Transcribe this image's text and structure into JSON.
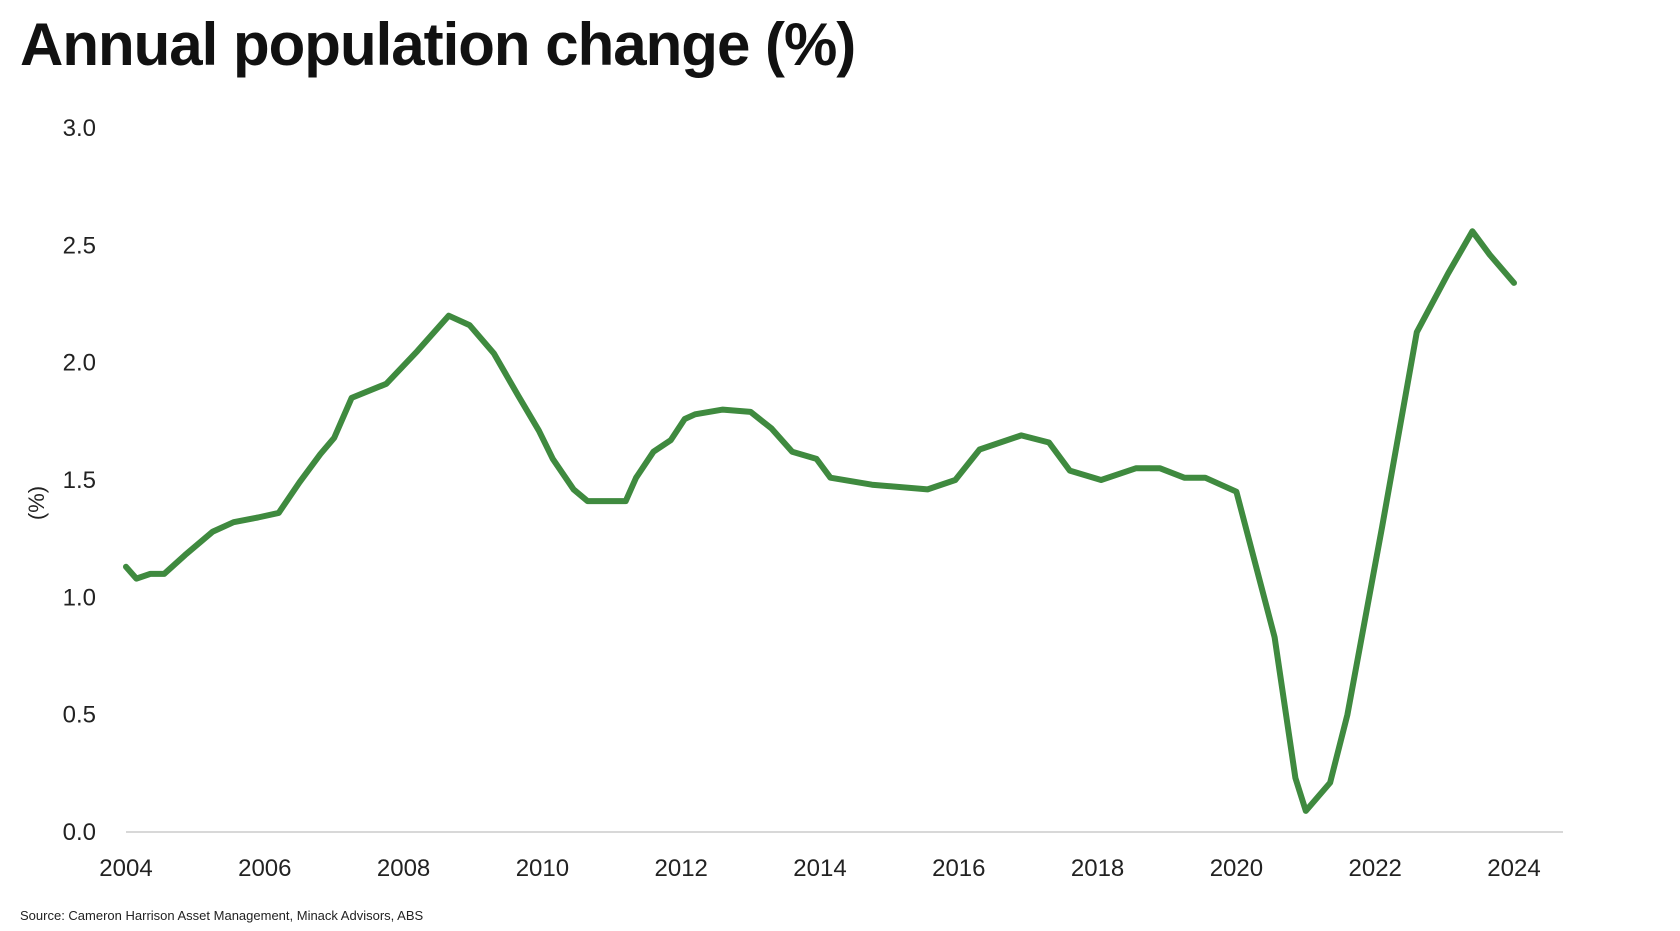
{
  "chart_data": {
    "type": "line",
    "title": "Annual population change (%)",
    "ylabel": "(%)",
    "xlabel": "",
    "xlim": [
      2004,
      2024.6
    ],
    "ylim": [
      0,
      3.0
    ],
    "x_ticks": [
      "2004",
      "2006",
      "2008",
      "2010",
      "2012",
      "2014",
      "2016",
      "2018",
      "2020",
      "2022",
      "2024"
    ],
    "y_ticks": [
      "0.0",
      "0.5",
      "1.0",
      "1.5",
      "2.0",
      "2.5",
      "3.0"
    ],
    "grid": false,
    "legend": "none",
    "line_color": "#3f8a3f",
    "series": [
      {
        "x": [
          2004.0,
          2004.15,
          2004.35,
          2004.55,
          2004.85,
          2005.25,
          2005.55,
          2005.9,
          2006.2,
          2006.5,
          2006.8,
          2007.0,
          2007.25,
          2007.75,
          2008.2,
          2008.65,
          2008.95,
          2009.3,
          2009.65,
          2009.95,
          2010.15,
          2010.45,
          2010.65,
          2011.0,
          2011.2,
          2011.35,
          2011.6,
          2011.85,
          2012.05,
          2012.2,
          2012.6,
          2013.0,
          2013.3,
          2013.6,
          2013.95,
          2014.15,
          2014.75,
          2015.55,
          2015.95,
          2016.3,
          2016.9,
          2017.3,
          2017.6,
          2018.05,
          2018.55,
          2018.9,
          2019.25,
          2019.55,
          2020.0,
          2020.55,
          2020.85,
          2021.0,
          2021.35,
          2021.6,
          2022.1,
          2022.6,
          2023.05,
          2023.4,
          2023.65,
          2024.0
        ],
        "y": [
          1.13,
          1.08,
          1.1,
          1.1,
          1.18,
          1.28,
          1.32,
          1.34,
          1.36,
          1.49,
          1.61,
          1.68,
          1.85,
          1.91,
          2.05,
          2.2,
          2.16,
          2.04,
          1.86,
          1.71,
          1.59,
          1.46,
          1.41,
          1.41,
          1.41,
          1.51,
          1.62,
          1.67,
          1.76,
          1.78,
          1.8,
          1.79,
          1.72,
          1.62,
          1.59,
          1.51,
          1.48,
          1.46,
          1.5,
          1.63,
          1.69,
          1.66,
          1.54,
          1.5,
          1.55,
          1.55,
          1.51,
          1.51,
          1.45,
          0.83,
          0.23,
          0.09,
          0.21,
          0.5,
          1.3,
          2.13,
          2.38,
          2.56,
          2.46,
          2.34
        ]
      }
    ]
  },
  "footer": {
    "source": "Source: Cameron Harrison Asset Management, Minack Advisors, ABS"
  }
}
